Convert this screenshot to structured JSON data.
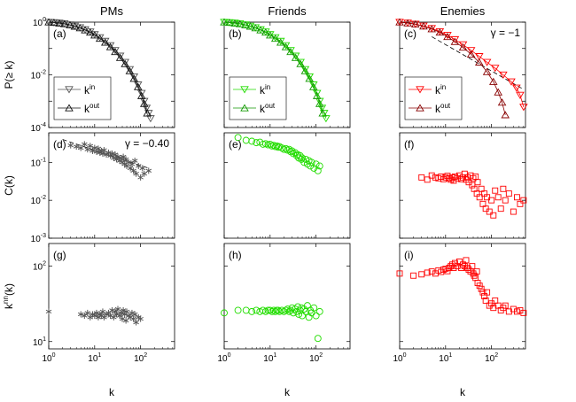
{
  "figure": {
    "column_titles": [
      "PMs",
      "Friends",
      "Enemies"
    ],
    "row_ylabels": [
      "P(≥ k)",
      "C(k)",
      "k^nn(k)"
    ],
    "xlabel": "k"
  },
  "colors": {
    "pms": "#555555",
    "friends": "#22dd00",
    "enemies_in": "#ff0000",
    "enemies_out": "#880000",
    "pms_out": "#111111",
    "friends_out": "#119900",
    "dashed": "#000000"
  },
  "chart_data": [
    {
      "id": "a",
      "label": "(a)",
      "type": "scatter",
      "xscale": "log",
      "yscale": "log",
      "xlim": [
        1,
        550
      ],
      "ylim": [
        0.0001,
        1
      ],
      "xticks": [
        "10^0",
        "10^1",
        "10^2"
      ],
      "yticks": [
        "10^0",
        "10^-2",
        "10^-4"
      ],
      "legend": {
        "position": "lower-left",
        "entries": [
          "k^in",
          "k^out"
        ]
      },
      "series": [
        {
          "name": "k^in",
          "marker": "triangle-down",
          "color": "pms",
          "x": [
            1,
            1.3,
            1.7,
            2.2,
            2.9,
            3.7,
            4.8,
            6.2,
            8,
            10,
            13,
            17,
            22,
            28,
            36,
            46,
            58,
            72,
            88,
            105,
            120,
            135,
            150,
            165
          ],
          "y": [
            1,
            0.97,
            0.93,
            0.88,
            0.8,
            0.71,
            0.62,
            0.52,
            0.43,
            0.34,
            0.26,
            0.19,
            0.13,
            0.085,
            0.052,
            0.03,
            0.016,
            0.0085,
            0.0042,
            0.002,
            0.001,
            0.00055,
            0.00035,
            0.00022
          ]
        },
        {
          "name": "k^out",
          "marker": "triangle-up",
          "color": "pms_out",
          "x": [
            1,
            1.3,
            1.7,
            2.2,
            2.9,
            3.7,
            4.8,
            6.2,
            8,
            10,
            13,
            17,
            22,
            28,
            36,
            46,
            58,
            72,
            88,
            105,
            120,
            140
          ],
          "y": [
            1,
            0.96,
            0.91,
            0.86,
            0.78,
            0.69,
            0.6,
            0.5,
            0.41,
            0.32,
            0.24,
            0.17,
            0.115,
            0.075,
            0.045,
            0.026,
            0.014,
            0.0072,
            0.0035,
            0.0016,
            0.0008,
            0.00035
          ]
        }
      ]
    },
    {
      "id": "b",
      "label": "(b)",
      "type": "scatter",
      "xscale": "log",
      "yscale": "log",
      "xlim": [
        1,
        550
      ],
      "ylim": [
        0.0001,
        1
      ],
      "xticks": [
        "10^0",
        "10^1",
        "10^2"
      ],
      "yticks": [],
      "legend": {
        "position": "lower-left",
        "entries": [
          "k^in",
          "k^out"
        ]
      },
      "series": [
        {
          "name": "k^in",
          "marker": "triangle-down",
          "color": "friends",
          "x": [
            1,
            1.3,
            1.7,
            2.2,
            2.9,
            3.7,
            4.8,
            6.2,
            8,
            10,
            13,
            17,
            22,
            28,
            36,
            46,
            58,
            72,
            88,
            105,
            120,
            135,
            150,
            165
          ],
          "y": [
            1,
            0.97,
            0.93,
            0.88,
            0.8,
            0.71,
            0.62,
            0.52,
            0.43,
            0.34,
            0.26,
            0.19,
            0.13,
            0.085,
            0.052,
            0.03,
            0.016,
            0.0085,
            0.0042,
            0.002,
            0.001,
            0.00055,
            0.00035,
            0.00022
          ]
        },
        {
          "name": "k^out",
          "marker": "triangle-up",
          "color": "friends_out",
          "x": [
            1,
            1.3,
            1.7,
            2.2,
            2.9,
            3.7,
            4.8,
            6.2,
            8,
            10,
            13,
            17,
            22,
            28,
            36,
            46,
            58,
            72,
            88,
            105,
            120,
            140
          ],
          "y": [
            1,
            0.96,
            0.91,
            0.86,
            0.78,
            0.69,
            0.6,
            0.5,
            0.41,
            0.32,
            0.24,
            0.17,
            0.115,
            0.075,
            0.045,
            0.026,
            0.014,
            0.0072,
            0.0035,
            0.0016,
            0.0008,
            0.00035
          ]
        }
      ]
    },
    {
      "id": "c",
      "label": "(c)",
      "type": "scatter",
      "xscale": "log",
      "yscale": "log",
      "xlim": [
        1,
        550
      ],
      "ylim": [
        0.0001,
        1
      ],
      "xticks": [
        "10^0",
        "10^1",
        "10^2"
      ],
      "yticks": [],
      "legend": {
        "position": "lower-left",
        "entries": [
          "k^in",
          "k^out"
        ]
      },
      "annotation": "γ = −1",
      "reference_line": {
        "x": [
          5,
          500
        ],
        "y": [
          0.28,
          0.0028
        ]
      },
      "series": [
        {
          "name": "k^in",
          "marker": "triangle-down",
          "color": "enemies_in",
          "x": [
            1,
            1.5,
            2.2,
            3.3,
            5,
            7.5,
            11,
            16,
            24,
            36,
            54,
            80,
            120,
            180,
            270,
            350,
            420,
            500
          ],
          "y": [
            1,
            0.93,
            0.85,
            0.72,
            0.58,
            0.44,
            0.32,
            0.22,
            0.14,
            0.085,
            0.05,
            0.03,
            0.018,
            0.01,
            0.0055,
            0.0032,
            0.0017,
            0.0006
          ]
        },
        {
          "name": "k^out",
          "marker": "triangle-up",
          "color": "enemies_out",
          "x": [
            1,
            1.5,
            2.2,
            3.3,
            5,
            7.5,
            11,
            16,
            24,
            36,
            54,
            80,
            110,
            140,
            170,
            200
          ],
          "y": [
            1,
            0.92,
            0.83,
            0.7,
            0.55,
            0.41,
            0.28,
            0.18,
            0.11,
            0.06,
            0.03,
            0.013,
            0.0055,
            0.0022,
            0.0009,
            0.0003
          ]
        }
      ]
    },
    {
      "id": "d",
      "label": "(d)",
      "type": "scatter",
      "xscale": "log",
      "yscale": "log",
      "xlim": [
        1,
        550
      ],
      "ylim": [
        0.001,
        0.6
      ],
      "xticks": [
        "10^0",
        "10^1",
        "10^2"
      ],
      "yticks": [
        "10^-1",
        "10^-2",
        "10^-3"
      ],
      "annotation": "γ = −0.40",
      "reference_line": {
        "x": [
          2,
          150
        ],
        "y": [
          0.4,
          0.07
        ]
      },
      "series": [
        {
          "name": "C(k)",
          "marker": "asterisk",
          "color": "pms",
          "x": [
            3,
            4,
            5,
            6,
            7,
            8,
            9,
            10,
            11,
            12,
            13,
            14,
            15,
            16,
            18,
            20,
            22,
            24,
            26,
            28,
            30,
            32,
            35,
            38,
            40,
            42,
            45,
            48,
            50,
            55,
            60,
            65,
            70,
            75,
            80,
            90,
            100,
            110,
            120,
            150
          ],
          "y": [
            0.28,
            0.26,
            0.24,
            0.3,
            0.22,
            0.27,
            0.2,
            0.24,
            0.19,
            0.23,
            0.18,
            0.2,
            0.17,
            0.21,
            0.16,
            0.18,
            0.15,
            0.17,
            0.13,
            0.16,
            0.12,
            0.14,
            0.11,
            0.13,
            0.1,
            0.14,
            0.09,
            0.12,
            0.08,
            0.1,
            0.07,
            0.09,
            0.06,
            0.11,
            0.05,
            0.08,
            0.04,
            0.07,
            0.05,
            0.06
          ]
        }
      ]
    },
    {
      "id": "e",
      "label": "(e)",
      "type": "scatter",
      "xscale": "log",
      "yscale": "log",
      "xlim": [
        1,
        550
      ],
      "ylim": [
        0.001,
        0.6
      ],
      "xticks": [
        "10^0",
        "10^1",
        "10^2"
      ],
      "yticks": [],
      "series": [
        {
          "name": "C(k)",
          "marker": "circle",
          "color": "friends",
          "x": [
            2,
            3,
            4,
            5,
            6,
            7,
            8,
            9,
            10,
            11,
            12,
            13,
            14,
            15,
            16,
            18,
            20,
            22,
            24,
            26,
            28,
            30,
            32,
            35,
            38,
            40,
            42,
            45,
            48,
            50,
            55,
            60,
            65,
            70,
            75,
            80,
            90,
            100,
            110,
            120
          ],
          "y": [
            0.45,
            0.38,
            0.36,
            0.33,
            0.34,
            0.3,
            0.31,
            0.29,
            0.3,
            0.27,
            0.28,
            0.26,
            0.27,
            0.25,
            0.26,
            0.24,
            0.22,
            0.23,
            0.21,
            0.22,
            0.19,
            0.2,
            0.17,
            0.18,
            0.15,
            0.16,
            0.13,
            0.15,
            0.12,
            0.13,
            0.1,
            0.12,
            0.09,
            0.11,
            0.08,
            0.1,
            0.07,
            0.09,
            0.06,
            0.08
          ]
        }
      ]
    },
    {
      "id": "f",
      "label": "(f)",
      "type": "scatter",
      "xscale": "log",
      "yscale": "log",
      "xlim": [
        1,
        550
      ],
      "ylim": [
        0.001,
        0.6
      ],
      "xticks": [
        "10^0",
        "10^1",
        "10^2"
      ],
      "yticks": [],
      "series": [
        {
          "name": "C(k)",
          "marker": "square",
          "color": "enemies_in",
          "x": [
            3,
            4,
            5,
            6,
            7,
            8,
            9,
            10,
            11,
            12,
            13,
            14,
            15,
            16,
            18,
            20,
            22,
            24,
            26,
            28,
            30,
            32,
            35,
            38,
            40,
            42,
            45,
            48,
            50,
            55,
            60,
            65,
            70,
            75,
            80,
            90,
            100,
            110,
            120,
            140,
            160,
            180,
            200,
            240,
            300,
            360,
            420,
            500
          ],
          "y": [
            0.04,
            0.035,
            0.045,
            0.04,
            0.038,
            0.042,
            0.036,
            0.04,
            0.044,
            0.038,
            0.035,
            0.04,
            0.033,
            0.042,
            0.038,
            0.045,
            0.036,
            0.04,
            0.05,
            0.035,
            0.04,
            0.03,
            0.045,
            0.025,
            0.038,
            0.02,
            0.042,
            0.015,
            0.03,
            0.012,
            0.02,
            0.008,
            0.015,
            0.006,
            0.012,
            0.005,
            0.01,
            0.004,
            0.018,
            0.012,
            0.006,
            0.02,
            0.01,
            0.015,
            0.005,
            0.012,
            0.008,
            0.01
          ]
        }
      ]
    },
    {
      "id": "g",
      "label": "(g)",
      "type": "scatter",
      "xscale": "log",
      "yscale": "log",
      "xlim": [
        1,
        550
      ],
      "ylim": [
        8,
        200
      ],
      "xticks": [
        "10^0",
        "10^1",
        "10^2"
      ],
      "yticks": [
        "10^2",
        "10^1"
      ],
      "series": [
        {
          "name": "knn(k)",
          "marker": "asterisk",
          "color": "pms",
          "x": [
            1,
            5,
            6,
            7,
            8,
            9,
            10,
            11,
            12,
            13,
            14,
            15,
            16,
            18,
            20,
            22,
            24,
            26,
            28,
            30,
            32,
            35,
            38,
            40,
            42,
            45,
            48,
            50,
            55,
            60,
            65,
            70,
            75,
            80,
            90,
            100
          ],
          "y": [
            25,
            23,
            22,
            24,
            21,
            23,
            22,
            24,
            21,
            23,
            22,
            25,
            21,
            23,
            24,
            22,
            26,
            21,
            25,
            23,
            27,
            22,
            24,
            20,
            26,
            23,
            19,
            25,
            22,
            21,
            24,
            20,
            23,
            18,
            21,
            20
          ]
        }
      ]
    },
    {
      "id": "h",
      "label": "(h)",
      "type": "scatter",
      "xscale": "log",
      "yscale": "log",
      "xlim": [
        1,
        550
      ],
      "ylim": [
        8,
        200
      ],
      "xticks": [
        "10^0",
        "10^1",
        "10^2"
      ],
      "yticks": [],
      "series": [
        {
          "name": "knn(k)",
          "marker": "circle",
          "color": "friends",
          "x": [
            1,
            2,
            3,
            4,
            5,
            6,
            7,
            8,
            9,
            10,
            11,
            12,
            13,
            14,
            15,
            16,
            18,
            20,
            22,
            24,
            26,
            28,
            30,
            32,
            35,
            38,
            40,
            42,
            45,
            48,
            50,
            55,
            60,
            65,
            70,
            75,
            80,
            90,
            100,
            110,
            120
          ],
          "y": [
            24,
            26,
            26,
            25,
            26,
            25,
            26,
            25,
            26,
            26,
            25,
            26,
            25,
            26,
            26,
            25,
            26,
            25,
            26,
            27,
            25,
            26,
            28,
            24,
            27,
            25,
            29,
            23,
            26,
            28,
            22,
            27,
            25,
            30,
            21,
            26,
            24,
            28,
            22,
            11,
            25
          ]
        }
      ]
    },
    {
      "id": "i",
      "label": "(i)",
      "type": "scatter",
      "xscale": "log",
      "yscale": "log",
      "xlim": [
        1,
        550
      ],
      "ylim": [
        8,
        200
      ],
      "xticks": [
        "10^0",
        "10^1",
        "10^2"
      ],
      "yticks": [],
      "series": [
        {
          "name": "knn(k)",
          "marker": "square",
          "color": "enemies_in",
          "x": [
            1,
            2,
            3,
            4,
            5,
            6,
            7,
            8,
            9,
            10,
            11,
            12,
            13,
            14,
            15,
            16,
            18,
            20,
            22,
            24,
            26,
            28,
            30,
            32,
            35,
            38,
            40,
            42,
            45,
            48,
            50,
            55,
            60,
            65,
            70,
            75,
            80,
            90,
            100,
            110,
            120,
            140,
            160,
            180,
            200,
            240,
            300,
            360,
            420,
            500
          ],
          "y": [
            80,
            75,
            78,
            82,
            85,
            80,
            88,
            84,
            90,
            92,
            86,
            95,
            100,
            105,
            95,
            110,
            100,
            115,
            95,
            105,
            100,
            120,
            95,
            90,
            85,
            100,
            80,
            75,
            70,
            85,
            60,
            55,
            50,
            45,
            40,
            35,
            45,
            30,
            32,
            28,
            35,
            30,
            26,
            28,
            30,
            25,
            27,
            25,
            26,
            24
          ]
        }
      ]
    }
  ]
}
